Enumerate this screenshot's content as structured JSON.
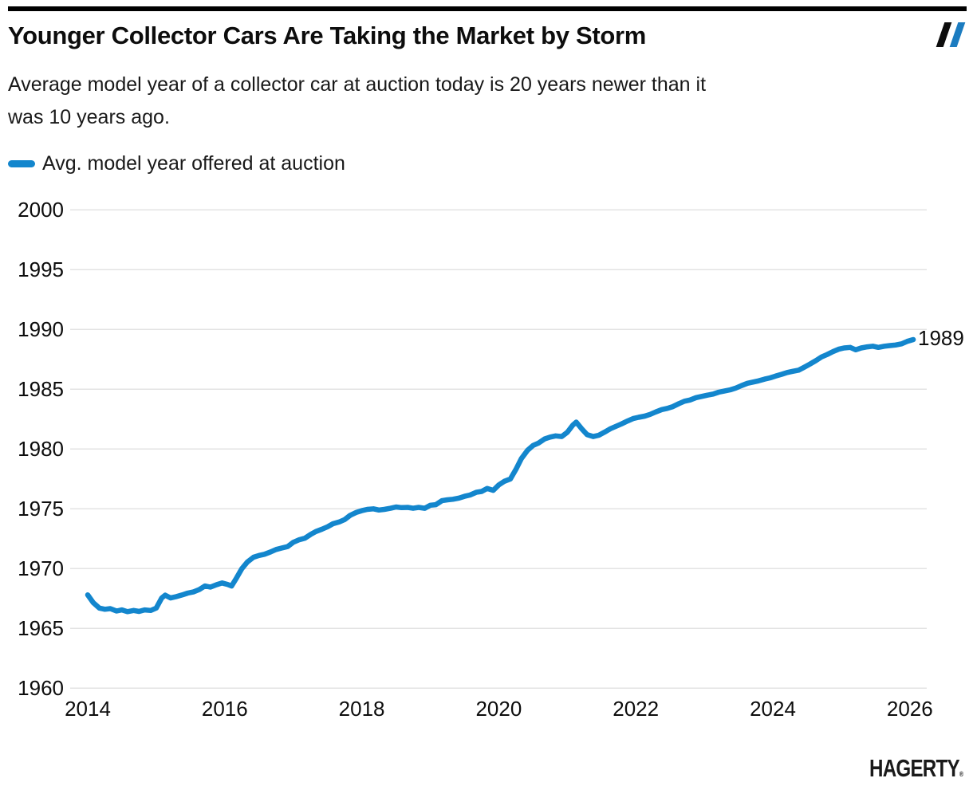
{
  "header": {
    "title": "Younger Collector Cars Are Taking the Market by Storm",
    "subtitle_line1": "Average model year of a collector car at auction today is 20 years newer than it",
    "subtitle_line2": "was 10 years ago."
  },
  "logo": {
    "name": "hagerty-double-slash",
    "black": "#0d0d0d",
    "blue": "#1c7cc0"
  },
  "legend": {
    "label": "Avg. model year offered at auction",
    "swatch_color": "#1386cd"
  },
  "annotation": {
    "end_label": "1989"
  },
  "footer": {
    "brand": "HAGERTY",
    "reg": "®"
  },
  "colors": {
    "line": "#1386cd",
    "gridline": "#e3e3e3",
    "text": "#0d0d0d"
  },
  "chart_data": {
    "type": "line",
    "title": "Younger Collector Cars Are Taking the Market by Storm",
    "subtitle": "Average model year of a collector car at auction today is 20 years newer than it was 10 years ago.",
    "xlabel": "",
    "ylabel": "",
    "xlim": [
      2013.75,
      2026.3
    ],
    "ylim": [
      1960,
      2000
    ],
    "x_ticks": [
      2014,
      2016,
      2018,
      2020,
      2022,
      2024,
      2026
    ],
    "y_ticks": [
      1960,
      1965,
      1970,
      1975,
      1980,
      1985,
      1990,
      1995,
      2000
    ],
    "grid": true,
    "legend_position": "top-left",
    "end_annotation_value": 1989,
    "series": [
      {
        "name": "Avg. model year offered at auction",
        "color": "#1386cd",
        "points": [
          [
            2014.0,
            1967.8
          ],
          [
            2014.08,
            1967.15
          ],
          [
            2014.17,
            1966.7
          ],
          [
            2014.25,
            1966.6
          ],
          [
            2014.33,
            1966.65
          ],
          [
            2014.42,
            1966.45
          ],
          [
            2014.5,
            1966.55
          ],
          [
            2014.58,
            1966.4
          ],
          [
            2014.67,
            1966.5
          ],
          [
            2014.75,
            1966.42
          ],
          [
            2014.83,
            1966.55
          ],
          [
            2014.92,
            1966.5
          ],
          [
            2015.0,
            1966.7
          ],
          [
            2015.08,
            1967.55
          ],
          [
            2015.13,
            1967.78
          ],
          [
            2015.21,
            1967.55
          ],
          [
            2015.29,
            1967.65
          ],
          [
            2015.38,
            1967.8
          ],
          [
            2015.46,
            1967.95
          ],
          [
            2015.54,
            1968.05
          ],
          [
            2015.63,
            1968.25
          ],
          [
            2015.71,
            1968.55
          ],
          [
            2015.79,
            1968.45
          ],
          [
            2015.88,
            1968.65
          ],
          [
            2015.96,
            1968.8
          ],
          [
            2016.04,
            1968.68
          ],
          [
            2016.1,
            1968.55
          ],
          [
            2016.17,
            1969.2
          ],
          [
            2016.25,
            1970.0
          ],
          [
            2016.33,
            1970.55
          ],
          [
            2016.42,
            1970.95
          ],
          [
            2016.5,
            1971.1
          ],
          [
            2016.58,
            1971.2
          ],
          [
            2016.67,
            1971.4
          ],
          [
            2016.75,
            1971.6
          ],
          [
            2016.83,
            1971.72
          ],
          [
            2016.92,
            1971.85
          ],
          [
            2017.0,
            1972.2
          ],
          [
            2017.08,
            1972.4
          ],
          [
            2017.17,
            1972.55
          ],
          [
            2017.25,
            1972.85
          ],
          [
            2017.33,
            1973.1
          ],
          [
            2017.42,
            1973.3
          ],
          [
            2017.5,
            1973.5
          ],
          [
            2017.58,
            1973.75
          ],
          [
            2017.67,
            1973.9
          ],
          [
            2017.75,
            1974.1
          ],
          [
            2017.83,
            1974.45
          ],
          [
            2017.92,
            1974.7
          ],
          [
            2018.0,
            1974.85
          ],
          [
            2018.08,
            1974.95
          ],
          [
            2018.17,
            1975.0
          ],
          [
            2018.25,
            1974.9
          ],
          [
            2018.33,
            1974.95
          ],
          [
            2018.42,
            1975.05
          ],
          [
            2018.5,
            1975.15
          ],
          [
            2018.58,
            1975.1
          ],
          [
            2018.67,
            1975.12
          ],
          [
            2018.75,
            1975.05
          ],
          [
            2018.83,
            1975.12
          ],
          [
            2018.92,
            1975.05
          ],
          [
            2019.0,
            1975.3
          ],
          [
            2019.08,
            1975.35
          ],
          [
            2019.17,
            1975.68
          ],
          [
            2019.25,
            1975.75
          ],
          [
            2019.33,
            1975.8
          ],
          [
            2019.42,
            1975.9
          ],
          [
            2019.5,
            1976.05
          ],
          [
            2019.58,
            1976.15
          ],
          [
            2019.67,
            1976.38
          ],
          [
            2019.75,
            1976.45
          ],
          [
            2019.83,
            1976.7
          ],
          [
            2019.92,
            1976.55
          ],
          [
            2020.0,
            1977.0
          ],
          [
            2020.08,
            1977.3
          ],
          [
            2020.17,
            1977.5
          ],
          [
            2020.25,
            1978.3
          ],
          [
            2020.33,
            1979.2
          ],
          [
            2020.42,
            1979.9
          ],
          [
            2020.5,
            1980.3
          ],
          [
            2020.58,
            1980.5
          ],
          [
            2020.67,
            1980.85
          ],
          [
            2020.75,
            1981.0
          ],
          [
            2020.83,
            1981.1
          ],
          [
            2020.92,
            1981.05
          ],
          [
            2021.0,
            1981.4
          ],
          [
            2021.08,
            1982.0
          ],
          [
            2021.13,
            1982.25
          ],
          [
            2021.21,
            1981.7
          ],
          [
            2021.29,
            1981.2
          ],
          [
            2021.38,
            1981.05
          ],
          [
            2021.46,
            1981.15
          ],
          [
            2021.54,
            1981.4
          ],
          [
            2021.63,
            1981.7
          ],
          [
            2021.71,
            1981.9
          ],
          [
            2021.79,
            1982.1
          ],
          [
            2021.88,
            1982.35
          ],
          [
            2021.96,
            1982.55
          ],
          [
            2022.04,
            1982.65
          ],
          [
            2022.13,
            1982.75
          ],
          [
            2022.21,
            1982.9
          ],
          [
            2022.29,
            1983.1
          ],
          [
            2022.38,
            1983.3
          ],
          [
            2022.46,
            1983.4
          ],
          [
            2022.54,
            1983.55
          ],
          [
            2022.63,
            1983.8
          ],
          [
            2022.71,
            1984.0
          ],
          [
            2022.79,
            1984.1
          ],
          [
            2022.88,
            1984.3
          ],
          [
            2022.96,
            1984.4
          ],
          [
            2023.04,
            1984.5
          ],
          [
            2023.13,
            1984.6
          ],
          [
            2023.21,
            1984.75
          ],
          [
            2023.29,
            1984.85
          ],
          [
            2023.38,
            1984.95
          ],
          [
            2023.46,
            1985.1
          ],
          [
            2023.54,
            1985.3
          ],
          [
            2023.63,
            1985.5
          ],
          [
            2023.71,
            1985.6
          ],
          [
            2023.79,
            1985.7
          ],
          [
            2023.88,
            1985.85
          ],
          [
            2023.96,
            1985.95
          ],
          [
            2024.04,
            1986.1
          ],
          [
            2024.13,
            1986.25
          ],
          [
            2024.21,
            1986.4
          ],
          [
            2024.29,
            1986.5
          ],
          [
            2024.38,
            1986.6
          ],
          [
            2024.46,
            1986.85
          ],
          [
            2024.54,
            1987.1
          ],
          [
            2024.63,
            1987.4
          ],
          [
            2024.71,
            1987.7
          ],
          [
            2024.79,
            1987.9
          ],
          [
            2024.88,
            1988.15
          ],
          [
            2024.96,
            1988.35
          ],
          [
            2025.04,
            1988.45
          ],
          [
            2025.13,
            1988.5
          ],
          [
            2025.21,
            1988.3
          ],
          [
            2025.29,
            1988.45
          ],
          [
            2025.38,
            1988.55
          ],
          [
            2025.46,
            1988.6
          ],
          [
            2025.54,
            1988.5
          ],
          [
            2025.63,
            1988.6
          ],
          [
            2025.71,
            1988.65
          ],
          [
            2025.79,
            1988.7
          ],
          [
            2025.88,
            1988.8
          ],
          [
            2025.96,
            1989.0
          ],
          [
            2026.05,
            1989.15
          ]
        ]
      }
    ]
  }
}
